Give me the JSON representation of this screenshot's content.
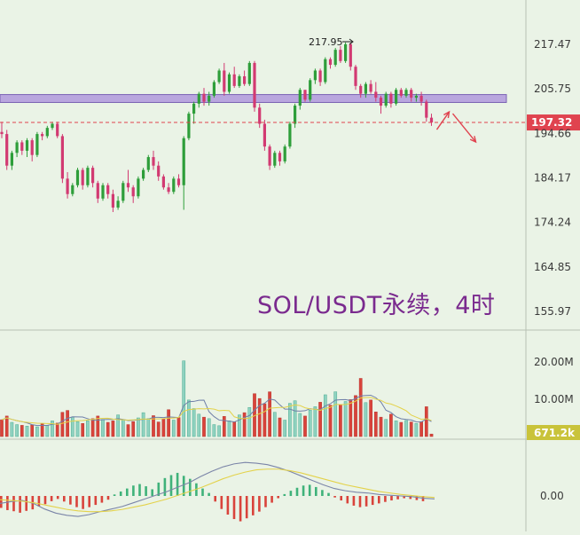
{
  "chart_data": {
    "type": "candlestick",
    "title": "SOL/USDT永续，4时",
    "high_annotation": "217.95",
    "price_axis_ticks": [
      "217.47",
      "205.75",
      "194.66",
      "184.17",
      "174.24",
      "164.85",
      "155.97"
    ],
    "price_axis_values": [
      217.47,
      205.75,
      194.66,
      184.17,
      174.24,
      164.85,
      155.97
    ],
    "current_price_label": "197.32",
    "current_price": 197.32,
    "resistance_zone": [
      204.3,
      202.3
    ],
    "volume_axis_ticks": [
      "20.00M",
      "10.00M"
    ],
    "volume_axis_values": [
      20,
      10
    ],
    "current_volume_label": "671.2k",
    "macd_axis_ticks": [
      "0.00"
    ],
    "colors": {
      "up": "#2e9e3a",
      "down": "#d23a72",
      "vol_up": "#8fd2c0",
      "vol_down": "#d9433b",
      "zone": "#b9a6de",
      "zone_border": "#7a62b4",
      "price_tag": "#e0434f",
      "volume_tag": "#c9c33a",
      "arrow": "#e0434f"
    },
    "candles": [
      [
        195.0,
        197.5,
        193.5,
        194.5
      ],
      [
        194.5,
        195.5,
        186.0,
        187.0
      ],
      [
        187.0,
        190.5,
        186.0,
        190.0
      ],
      [
        190.0,
        193.0,
        189.0,
        192.5
      ],
      [
        192.5,
        193.0,
        189.5,
        190.5
      ],
      [
        190.5,
        193.5,
        189.0,
        193.0
      ],
      [
        193.0,
        193.5,
        188.0,
        189.5
      ],
      [
        189.5,
        195.0,
        189.0,
        194.5
      ],
      [
        194.5,
        195.0,
        193.0,
        194.0
      ],
      [
        194.0,
        196.5,
        193.5,
        196.0
      ],
      [
        196.0,
        197.5,
        195.5,
        197.0
      ],
      [
        197.0,
        197.5,
        193.5,
        194.0
      ],
      [
        194.0,
        194.5,
        183.0,
        184.0
      ],
      [
        184.0,
        185.5,
        179.5,
        180.5
      ],
      [
        180.5,
        183.0,
        180.0,
        182.5
      ],
      [
        182.5,
        186.5,
        182.0,
        186.0
      ],
      [
        186.0,
        186.5,
        181.5,
        182.5
      ],
      [
        182.5,
        187.0,
        182.0,
        186.5
      ],
      [
        186.5,
        187.0,
        182.0,
        183.0
      ],
      [
        183.0,
        183.5,
        178.5,
        179.5
      ],
      [
        179.5,
        183.0,
        179.0,
        182.5
      ],
      [
        182.5,
        183.0,
        179.5,
        180.5
      ],
      [
        180.5,
        181.5,
        176.5,
        177.5
      ],
      [
        177.5,
        180.0,
        177.0,
        179.0
      ],
      [
        179.0,
        183.5,
        178.5,
        183.0
      ],
      [
        183.0,
        186.0,
        181.0,
        182.0
      ],
      [
        182.0,
        182.5,
        178.5,
        180.0
      ],
      [
        180.0,
        184.5,
        179.5,
        184.0
      ],
      [
        184.0,
        186.5,
        183.5,
        186.0
      ],
      [
        186.0,
        189.5,
        185.5,
        189.0
      ],
      [
        189.0,
        190.5,
        186.0,
        187.0
      ],
      [
        187.0,
        188.0,
        183.5,
        184.5
      ],
      [
        184.5,
        185.0,
        181.5,
        182.0
      ],
      [
        182.0,
        183.0,
        180.5,
        181.0
      ],
      [
        181.0,
        184.5,
        180.5,
        184.0
      ],
      [
        184.0,
        185.0,
        182.0,
        182.5
      ],
      [
        182.5,
        194.0,
        177.0,
        193.5
      ],
      [
        193.5,
        200.0,
        193.0,
        199.5
      ],
      [
        199.5,
        202.5,
        197.0,
        202.0
      ],
      [
        202.0,
        205.0,
        201.0,
        204.5
      ],
      [
        204.5,
        206.0,
        201.5,
        202.5
      ],
      [
        202.5,
        205.0,
        201.5,
        204.0
      ],
      [
        204.0,
        208.0,
        203.5,
        207.5
      ],
      [
        207.5,
        211.0,
        207.0,
        210.5
      ],
      [
        210.5,
        212.5,
        204.0,
        205.0
      ],
      [
        205.0,
        210.0,
        204.5,
        209.5
      ],
      [
        209.5,
        211.5,
        206.0,
        206.5
      ],
      [
        206.5,
        209.5,
        206.0,
        209.0
      ],
      [
        209.0,
        210.5,
        206.5,
        207.0
      ],
      [
        207.0,
        213.0,
        206.5,
        212.5
      ],
      [
        212.5,
        213.0,
        200.0,
        201.0
      ],
      [
        201.0,
        202.0,
        196.0,
        197.0
      ],
      [
        197.0,
        198.0,
        190.5,
        191.5
      ],
      [
        191.5,
        192.0,
        186.0,
        187.0
      ],
      [
        187.0,
        190.5,
        186.5,
        190.0
      ],
      [
        190.0,
        190.5,
        187.0,
        188.0
      ],
      [
        188.0,
        192.0,
        187.5,
        191.5
      ],
      [
        191.5,
        197.5,
        191.0,
        197.0
      ],
      [
        197.0,
        202.0,
        196.0,
        201.5
      ],
      [
        201.5,
        206.0,
        200.5,
        205.5
      ],
      [
        205.5,
        205.5,
        202.5,
        203.0
      ],
      [
        203.0,
        208.5,
        202.5,
        208.0
      ],
      [
        208.0,
        211.0,
        207.0,
        210.5
      ],
      [
        210.5,
        211.0,
        206.5,
        207.5
      ],
      [
        207.5,
        214.0,
        207.0,
        213.5
      ],
      [
        213.5,
        214.0,
        211.0,
        212.0
      ],
      [
        212.0,
        216.5,
        211.5,
        216.0
      ],
      [
        216.0,
        217.0,
        212.5,
        213.0
      ],
      [
        213.0,
        218.0,
        212.5,
        217.5
      ],
      [
        217.5,
        217.95,
        210.5,
        211.5
      ],
      [
        211.5,
        212.0,
        205.5,
        206.5
      ],
      [
        206.5,
        207.0,
        203.5,
        204.5
      ],
      [
        204.5,
        207.5,
        203.5,
        207.0
      ],
      [
        207.0,
        208.0,
        204.5,
        205.0
      ],
      [
        205.0,
        207.5,
        202.5,
        203.5
      ],
      [
        203.5,
        204.0,
        199.5,
        201.5
      ],
      [
        201.5,
        205.0,
        201.0,
        204.5
      ],
      [
        204.5,
        205.0,
        201.0,
        202.0
      ],
      [
        202.0,
        206.0,
        201.5,
        205.5
      ],
      [
        205.5,
        206.0,
        203.5,
        204.0
      ],
      [
        204.0,
        206.0,
        203.5,
        205.5
      ],
      [
        205.5,
        206.0,
        202.5,
        203.5
      ],
      [
        203.5,
        204.5,
        202.5,
        204.0
      ],
      [
        204.0,
        205.0,
        201.5,
        202.5
      ],
      [
        202.5,
        203.0,
        197.5,
        198.5
      ],
      [
        198.5,
        199.5,
        196.5,
        197.32
      ]
    ],
    "volumes_m": [
      4.5,
      5.5,
      3.8,
      3.2,
      3.0,
      2.8,
      3.1,
      2.6,
      3.4,
      3.0,
      4.2,
      3.6,
      6.5,
      7.0,
      5.2,
      4.0,
      3.5,
      4.2,
      4.8,
      5.5,
      4.6,
      3.8,
      4.2,
      5.8,
      4.5,
      3.2,
      4.0,
      5.0,
      6.4,
      4.8,
      5.6,
      3.9,
      4.8,
      7.2,
      4.4,
      5.1,
      20.3,
      9.8,
      7.5,
      6.0,
      5.2,
      4.8,
      3.2,
      2.9,
      5.4,
      4.2,
      3.9,
      5.8,
      6.4,
      7.8,
      11.5,
      10.2,
      8.8,
      12.0,
      6.5,
      5.0,
      4.4,
      8.9,
      9.6,
      6.2,
      5.5,
      7.1,
      8.0,
      9.2,
      11.2,
      8.4,
      12.0,
      8.6,
      9.4,
      9.9,
      11.0,
      15.6,
      9.1,
      9.8,
      6.6,
      5.2,
      4.6,
      6.0,
      4.2,
      3.8,
      4.3,
      3.9,
      3.5,
      4.0,
      8.0,
      0.67
    ],
    "macd_hist": [
      -3.2,
      -3.8,
      -4.1,
      -4.5,
      -4.0,
      -3.6,
      -2.8,
      -2.2,
      -1.4,
      -0.8,
      -1.5,
      -2.3,
      -3.0,
      -3.5,
      -3.0,
      -2.4,
      -1.8,
      -1.0,
      0.4,
      1.2,
      2.0,
      2.8,
      3.2,
      2.6,
      1.8,
      3.6,
      4.8,
      5.6,
      6.2,
      5.4,
      4.6,
      3.4,
      2.0,
      0.8,
      -1.5,
      -3.5,
      -5.0,
      -6.2,
      -6.8,
      -6.0,
      -5.2,
      -4.2,
      -3.0,
      -1.8,
      -0.6,
      0.5,
      1.4,
      2.2,
      2.8,
      3.0,
      2.4,
      1.6,
      0.8,
      -0.4,
      -1.2,
      -2.0,
      -2.6,
      -3.0,
      -2.8,
      -2.4,
      -2.0,
      -1.6,
      -1.2,
      -0.9,
      -0.6,
      -0.8,
      -1.1,
      -1.4
    ],
    "macd_line": [
      -2.0,
      -1.5,
      -1.2,
      -2.0,
      -3.5,
      -4.6,
      -5.2,
      -5.5,
      -5.0,
      -4.2,
      -3.5,
      -2.8,
      -1.8,
      -0.8,
      0.2,
      1.2,
      2.4,
      3.6,
      5.2,
      6.6,
      7.8,
      8.6,
      9.0,
      8.8,
      8.4,
      7.6,
      6.6,
      5.4,
      4.2,
      3.0,
      2.0,
      1.4,
      1.0,
      0.8,
      0.4,
      0.2,
      0.0,
      -0.2,
      -0.6,
      -0.8
    ],
    "macd_signal": [
      -1.0,
      -1.2,
      -1.4,
      -1.8,
      -2.4,
      -3.0,
      -3.6,
      -4.0,
      -4.2,
      -4.2,
      -4.0,
      -3.6,
      -3.0,
      -2.4,
      -1.6,
      -0.8,
      0.2,
      1.2,
      2.2,
      3.4,
      4.6,
      5.6,
      6.4,
      7.0,
      7.2,
      7.2,
      6.8,
      6.2,
      5.4,
      4.6,
      3.8,
      3.0,
      2.4,
      1.8,
      1.2,
      0.8,
      0.4,
      0.1,
      -0.2,
      -0.4
    ]
  }
}
